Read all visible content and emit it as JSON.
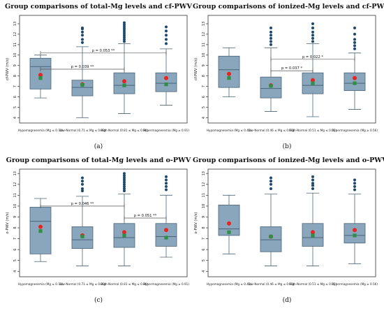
{
  "colors": {
    "box_fill": "#8aa6bc",
    "box_stroke": "#4a6478",
    "outlier": "#1b4a6e",
    "mean_marker": "#e8251f",
    "median_marker": "#2f8f45",
    "bracket": "#555555",
    "frame": "#333333"
  },
  "chart_data": [
    {
      "type": "box",
      "panel_label": "(a)",
      "title": "Group comparisons of total-Mg levels and cf-PWV",
      "ylabel": "cf-PWV (m/s)",
      "ylim": [
        3.5,
        13.8
      ],
      "yticks": [
        4,
        5,
        6,
        7,
        8,
        9,
        10,
        11,
        12,
        13
      ],
      "categories": [
        "Hypomagnesemia (Mg ≤ 0.70)",
        "Low-Normal (0.71 ≤ Mg ≤ 0.80)",
        "High-Normal (0.81 ≤ Mg ≤ 0.90)",
        "Hypermagnesemia (Mg ≥ 0.91)"
      ],
      "boxes": [
        {
          "whisker_low": 5.9,
          "q1": 6.75,
          "median": 8.9,
          "q3": 9.7,
          "whisker_high": 10.0,
          "mean": 8.1,
          "marker2": 7.8,
          "outliers": []
        },
        {
          "whisker_low": 4.0,
          "q1": 6.1,
          "median": 6.9,
          "q3": 7.6,
          "whisker_high": 10.8,
          "mean": 7.2,
          "marker2": 7.15,
          "outliers": [
            11.2,
            11.5,
            11.9,
            12.2,
            12.5,
            12.6
          ]
        },
        {
          "whisker_low": 4.4,
          "q1": 6.3,
          "median": 7.1,
          "q3": 8.3,
          "whisker_high": 11.1,
          "mean": 7.5,
          "marker2": 7.1,
          "outliers": [
            11.3,
            11.5,
            11.7,
            11.9,
            12.1,
            12.3,
            12.5,
            12.7,
            12.9,
            13.1
          ]
        },
        {
          "whisker_low": 5.2,
          "q1": 6.5,
          "median": 7.3,
          "q3": 8.3,
          "whisker_high": 10.6,
          "mean": 7.8,
          "marker2": 7.2,
          "outliers": [
            11.1,
            11.5,
            11.9,
            12.3,
            12.7
          ]
        }
      ],
      "annotations": [
        {
          "text": "p = 0.053 **",
          "from": 0,
          "to": 3,
          "y": 10.2
        },
        {
          "text": "p = 0.039 **",
          "from": 0,
          "to": 2,
          "y": 8.65
        }
      ]
    },
    {
      "type": "box",
      "panel_label": "(b)",
      "title": "Group comparisons of ionized-Mg levels and cf-PWV",
      "ylabel": "cf-PWV (m/s)",
      "ylim": [
        3.5,
        13.8
      ],
      "yticks": [
        4,
        5,
        6,
        7,
        8,
        9,
        10,
        11,
        12,
        13
      ],
      "categories": [
        "Hypomagnesemia (Mg ≤ 0.45)",
        "Low-Normal (0.46 ≤ Mg ≤ 0.50)",
        "High-Normal (0.51 ≤ Mg ≤ 0.55)",
        "Hypermagnesemia (Mg ≥ 0.56)"
      ],
      "boxes": [
        {
          "whisker_low": 6.0,
          "q1": 6.9,
          "median": 8.6,
          "q3": 9.9,
          "whisker_high": 10.7,
          "mean": 8.2,
          "marker2": 7.8,
          "outliers": []
        },
        {
          "whisker_low": 4.6,
          "q1": 5.9,
          "median": 6.8,
          "q3": 7.9,
          "whisker_high": 10.7,
          "mean": 7.1,
          "marker2": 7.05,
          "outliers": [
            11.0,
            11.3,
            11.6,
            11.9,
            12.2,
            12.6
          ]
        },
        {
          "whisker_low": 4.1,
          "q1": 6.3,
          "median": 7.1,
          "q3": 8.3,
          "whisker_high": 11.1,
          "mean": 7.6,
          "marker2": 7.3,
          "outliers": [
            11.3,
            11.6,
            11.9,
            12.2,
            12.6,
            13.0
          ]
        },
        {
          "whisker_low": 4.8,
          "q1": 6.6,
          "median": 7.3,
          "q3": 8.3,
          "whisker_high": 10.2,
          "mean": 7.8,
          "marker2": 7.3,
          "outliers": [
            10.6,
            10.9,
            11.2,
            11.5,
            12.0,
            12.6
          ]
        }
      ],
      "annotations": [
        {
          "text": "p = 0.022 *",
          "from": 1,
          "to": 3,
          "y": 9.6
        },
        {
          "text": "p = 0.037 *",
          "from": 1,
          "to": 2,
          "y": 8.5
        }
      ]
    },
    {
      "type": "box",
      "panel_label": "(c)",
      "title": "Group comparisons of total-Mg levels and o-PWV",
      "ylabel": "o-PWV (m/s)",
      "ylim": [
        3.5,
        13.4
      ],
      "yticks": [
        4,
        5,
        6,
        7,
        8,
        9,
        10,
        11,
        12,
        13
      ],
      "categories": [
        "Hypomagnesemia (Mg ≤ 0.70)",
        "Low-Normal (0.71 ≤ Mg ≤ 0.80)",
        "High-Normal (0.81 ≤ Mg ≤ 0.90)",
        "Hypermagnesemia (Mg ≥ 0.91)"
      ],
      "boxes": [
        {
          "whisker_low": 4.9,
          "q1": 5.6,
          "median": 8.6,
          "q3": 9.9,
          "whisker_high": 10.7,
          "mean": 8.1,
          "marker2": 7.7,
          "outliers": []
        },
        {
          "whisker_low": 4.5,
          "q1": 6.1,
          "median": 6.9,
          "q3": 8.1,
          "whisker_high": 10.9,
          "mean": 7.3,
          "marker2": 7.2,
          "outliers": [
            11.4,
            11.6,
            12.0,
            12.3,
            12.6
          ]
        },
        {
          "whisker_low": 4.5,
          "q1": 6.2,
          "median": 7.1,
          "q3": 8.4,
          "whisker_high": 11.1,
          "mean": 7.6,
          "marker2": 7.3,
          "outliers": [
            11.4,
            11.6,
            11.8,
            12.0,
            12.2,
            12.4,
            12.6,
            12.8,
            13.0
          ]
        },
        {
          "whisker_low": 5.3,
          "q1": 6.3,
          "median": 7.2,
          "q3": 8.4,
          "whisker_high": 11.0,
          "mean": 7.8,
          "marker2": 7.1,
          "outliers": [
            11.5,
            11.8,
            12.1,
            12.4,
            12.7
          ]
        }
      ],
      "annotations": [
        {
          "text": "p = 0.046 **",
          "from": 0,
          "to": 2,
          "y": 10.0
        },
        {
          "text": "p = 0.051 **",
          "from": 2,
          "to": 3,
          "y": 8.9
        }
      ]
    },
    {
      "type": "box",
      "panel_label": "(d)",
      "title": "Group comparisons of ionized-Mg levels and o-PWV",
      "ylabel": "o-PWV (m/s)",
      "ylim": [
        3.5,
        13.4
      ],
      "yticks": [
        4,
        5,
        6,
        7,
        8,
        9,
        10,
        11,
        12,
        13
      ],
      "categories": [
        "Hypomagnesemia (Mg ≤ 0.45)",
        "Low-Normal (0.46 ≤ Mg ≤ 0.50)",
        "High-Normal (0.51 ≤ Mg ≤ 0.55)",
        "Hypermagnesemia (Mg ≥ 0.56)"
      ],
      "boxes": [
        {
          "whisker_low": 5.6,
          "q1": 7.3,
          "median": 7.9,
          "q3": 10.1,
          "whisker_high": 11.0,
          "mean": 8.4,
          "marker2": 7.6,
          "outliers": []
        },
        {
          "whisker_low": 4.5,
          "q1": 5.8,
          "median": 6.9,
          "q3": 8.1,
          "whisker_high": 11.1,
          "mean": 7.2,
          "marker2": 7.2,
          "outliers": [
            11.6,
            12.0,
            12.3,
            12.6
          ]
        },
        {
          "whisker_low": 4.5,
          "q1": 6.3,
          "median": 7.1,
          "q3": 8.4,
          "whisker_high": 11.2,
          "mean": 7.6,
          "marker2": 7.3,
          "outliers": [
            11.6,
            11.9,
            12.1,
            12.4,
            12.7
          ]
        },
        {
          "whisker_low": 4.7,
          "q1": 6.6,
          "median": 7.3,
          "q3": 8.4,
          "whisker_high": 11.1,
          "mean": 7.8,
          "marker2": 7.3,
          "outliers": [
            11.5,
            11.8,
            12.1,
            12.4
          ]
        }
      ],
      "annotations": []
    }
  ]
}
